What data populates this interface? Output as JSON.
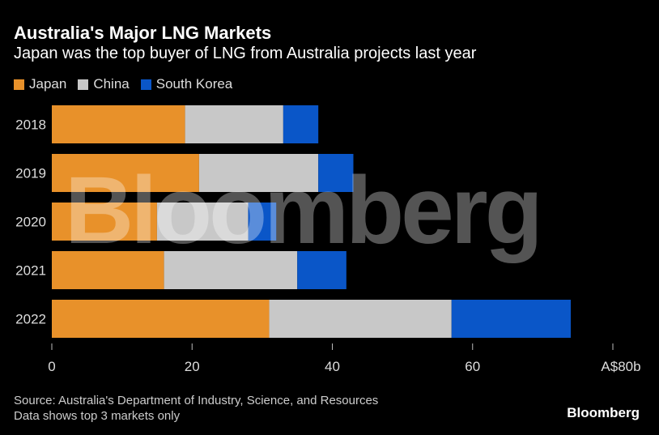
{
  "chart_data": {
    "type": "bar",
    "orientation": "horizontal",
    "stacked": true,
    "title": "Australia's Major LNG Markets",
    "subtitle": "Japan was the top buyer of LNG from Australia projects last year",
    "categories": [
      "2018",
      "2019",
      "2020",
      "2021",
      "2022"
    ],
    "series": [
      {
        "name": "Japan",
        "color": "#e8912a",
        "values": [
          19,
          21,
          15,
          16,
          31
        ]
      },
      {
        "name": "China",
        "color": "#c8c8c8",
        "values": [
          14,
          17,
          13,
          19,
          26
        ]
      },
      {
        "name": "South Korea",
        "color": "#0a56c8",
        "values": [
          5,
          5,
          4,
          7,
          17
        ]
      }
    ],
    "xlim": [
      0,
      80
    ],
    "xticks": [
      "0",
      "20",
      "40",
      "60",
      "A$80b"
    ],
    "xtick_values": [
      0,
      20,
      40,
      60,
      80
    ],
    "legend": "top-left",
    "grid": false
  },
  "footer": {
    "source": "Source: Australia's Department of Industry, Science, and Resources",
    "note": "Data shows top 3 markets only",
    "brand": "Bloomberg"
  },
  "watermark": "Bloomberg"
}
